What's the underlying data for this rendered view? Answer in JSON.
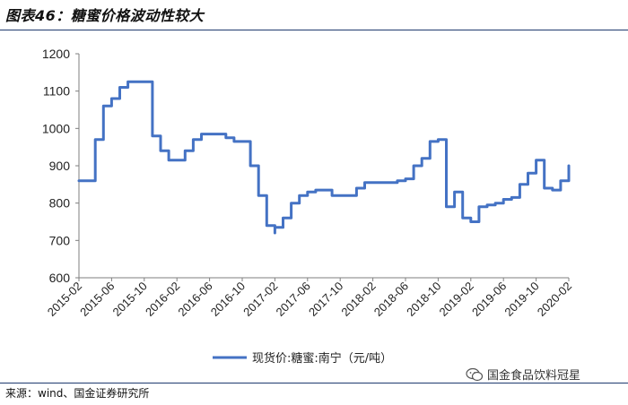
{
  "figure": {
    "title": "图表46：糖蜜价格波动性较大",
    "source": "来源：wind、国金证券研究所",
    "watermark": "国金食品饮料冠星",
    "watermark_icon": "wechat-icon"
  },
  "colors": {
    "line": "#4472c4",
    "rule": "#1f3a6e",
    "axis": "#7f7f7f"
  },
  "chart_data": {
    "type": "line",
    "title": "",
    "xlabel": "",
    "ylabel": "",
    "ylim": [
      600,
      1200
    ],
    "yticks": [
      600,
      700,
      800,
      900,
      1000,
      1100,
      1200
    ],
    "xlim": [
      "2015-02",
      "2020-02"
    ],
    "xtick_labels": [
      "2015-02",
      "2015-06",
      "2015-10",
      "2016-02",
      "2016-06",
      "2016-10",
      "2017-02",
      "2017-06",
      "2017-10",
      "2018-02",
      "2018-06",
      "2018-10",
      "2019-02",
      "2019-06",
      "2019-10",
      "2020-02"
    ],
    "grid": false,
    "legend_position": "bottom",
    "series": [
      {
        "name": "现货价:糖蜜:南宁（元/吨）",
        "color": "#4472c4",
        "x": [
          "2015-02",
          "2015-03",
          "2015-04",
          "2015-04",
          "2015-05",
          "2015-05",
          "2015-06",
          "2015-07",
          "2015-08",
          "2015-09",
          "2015-10",
          "2015-11",
          "2015-11",
          "2015-12",
          "2016-01",
          "2016-02",
          "2016-03",
          "2016-04",
          "2016-05",
          "2016-06",
          "2016-07",
          "2016-08",
          "2016-09",
          "2016-10",
          "2016-11",
          "2016-12",
          "2017-01",
          "2017-02",
          "2017-02",
          "2017-03",
          "2017-04",
          "2017-05",
          "2017-06",
          "2017-07",
          "2017-08",
          "2017-09",
          "2017-10",
          "2017-11",
          "2017-12",
          "2018-01",
          "2018-02",
          "2018-03",
          "2018-04",
          "2018-05",
          "2018-06",
          "2018-07",
          "2018-08",
          "2018-09",
          "2018-10",
          "2018-11",
          "2018-12",
          "2019-01",
          "2019-02",
          "2019-03",
          "2019-04",
          "2019-05",
          "2019-06",
          "2019-07",
          "2019-08",
          "2019-09",
          "2019-10",
          "2019-11",
          "2019-12",
          "2020-01",
          "2020-02"
        ],
        "values": [
          860,
          860,
          870,
          970,
          1000,
          1060,
          1080,
          1110,
          1125,
          1125,
          1125,
          1060,
          980,
          940,
          915,
          915,
          940,
          970,
          985,
          985,
          985,
          975,
          965,
          965,
          900,
          820,
          740,
          720,
          735,
          760,
          800,
          820,
          830,
          835,
          835,
          820,
          820,
          820,
          840,
          855,
          855,
          855,
          855,
          860,
          865,
          900,
          920,
          965,
          970,
          790,
          830,
          760,
          750,
          790,
          795,
          800,
          810,
          815,
          850,
          880,
          915,
          840,
          835,
          860,
          900
        ]
      }
    ]
  }
}
